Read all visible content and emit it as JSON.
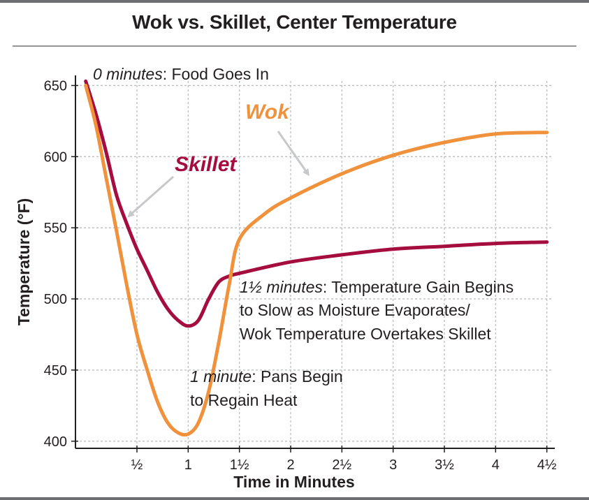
{
  "chart_data": {
    "type": "line",
    "title": "Wok vs. Skillet, Center Temperature",
    "xlabel": "Time in Minutes",
    "ylabel": "Temperature (°F)",
    "xlim": [
      -0.1,
      4.55
    ],
    "ylim": [
      395,
      662
    ],
    "grid": true,
    "x_ticks": [
      {
        "value": 0.5,
        "label": "½"
      },
      {
        "value": 1,
        "label": "1"
      },
      {
        "value": 1.5,
        "label": "1½"
      },
      {
        "value": 2,
        "label": "2"
      },
      {
        "value": 2.5,
        "label": "2½"
      },
      {
        "value": 3,
        "label": "3"
      },
      {
        "value": 3.5,
        "label": "3½"
      },
      {
        "value": 4,
        "label": "4"
      },
      {
        "value": 4.5,
        "label": "4½"
      }
    ],
    "y_ticks": [
      {
        "value": 400,
        "label": "400"
      },
      {
        "value": 450,
        "label": "450"
      },
      {
        "value": 500,
        "label": "500"
      },
      {
        "value": 550,
        "label": "550"
      },
      {
        "value": 600,
        "label": "600"
      },
      {
        "value": 650,
        "label": "650"
      }
    ],
    "series": [
      {
        "name": "Skillet",
        "color": "#a50d3f",
        "x": [
          0,
          0.1,
          0.2,
          0.3,
          0.4,
          0.5,
          0.6,
          0.7,
          0.8,
          0.9,
          1.0,
          1.1,
          1.2,
          1.3,
          1.4,
          1.5,
          2.0,
          2.5,
          3.0,
          3.5,
          4.0,
          4.5
        ],
        "values": [
          653,
          630,
          603,
          573,
          553,
          535,
          520,
          505,
          493,
          485,
          481,
          485,
          500,
          512,
          516,
          518,
          526,
          531,
          535,
          537,
          539,
          540
        ]
      },
      {
        "name": "Wok",
        "color": "#f0913c",
        "x": [
          0,
          0.1,
          0.2,
          0.3,
          0.4,
          0.5,
          0.6,
          0.7,
          0.8,
          0.9,
          1.0,
          1.1,
          1.2,
          1.3,
          1.4,
          1.5,
          1.75,
          2.0,
          2.5,
          3.0,
          3.5,
          4.0,
          4.5
        ],
        "values": [
          650,
          622,
          585,
          548,
          510,
          475,
          450,
          428,
          413,
          406,
          405,
          413,
          435,
          470,
          510,
          542,
          560,
          571,
          588,
          601,
          610,
          616,
          617
        ]
      }
    ],
    "series_labels": {
      "skillet": "Skillet",
      "wok": "Wok"
    },
    "annotations": {
      "start_em": "0 minutes",
      "start_text": ": Food Goes In",
      "one_min_em": "1 minute",
      "one_min_text1": ": Pans Begin",
      "one_min_text2": "to Regain Heat",
      "one_half_em": "1½ minutes",
      "one_half_text1": ": Temperature Gain Begins",
      "one_half_text2": "to Slow as Moisture Evaporates/",
      "one_half_text3": "Wok Temperature Overtakes Skillet"
    },
    "colors": {
      "arrow": "#c7c8ca",
      "grid": "#bcbec0",
      "frame": "#6d6e71"
    }
  }
}
